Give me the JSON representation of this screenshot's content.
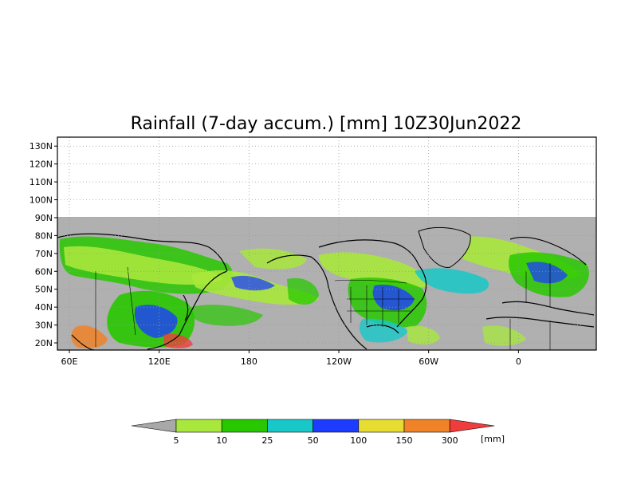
{
  "map": {
    "title": "Rainfall (7-day accum.) [mm] 10Z30Jun2022",
    "lat_labels": [
      "130N",
      "120N",
      "110N",
      "100N",
      "90N",
      "80N",
      "70N",
      "60N",
      "50N",
      "40N",
      "30N",
      "20N"
    ],
    "lon_labels": [
      "60E",
      "120E",
      "180",
      "120W",
      "60W",
      "0"
    ],
    "lat_range": [
      16,
      135
    ],
    "lon_range": [
      52,
      412
    ],
    "lat_ticks": [
      130,
      120,
      110,
      100,
      90,
      80,
      70,
      60,
      50,
      40,
      30,
      20
    ],
    "lon_ticks": [
      60,
      120,
      180,
      240,
      300,
      360
    ],
    "no_data_color": "#b0b0b0",
    "grid": true
  },
  "colorbar": {
    "unit_label": "[mm]",
    "tick_labels": [
      "5",
      "10",
      "25",
      "50",
      "100",
      "150",
      "300"
    ],
    "colors": {
      "below": "#a8a8a8",
      "bins": [
        "#a8e83c",
        "#28c800",
        "#18c8c8",
        "#1e3cff",
        "#e6dc32",
        "#f08228"
      ],
      "above": "#f03c3c"
    }
  }
}
